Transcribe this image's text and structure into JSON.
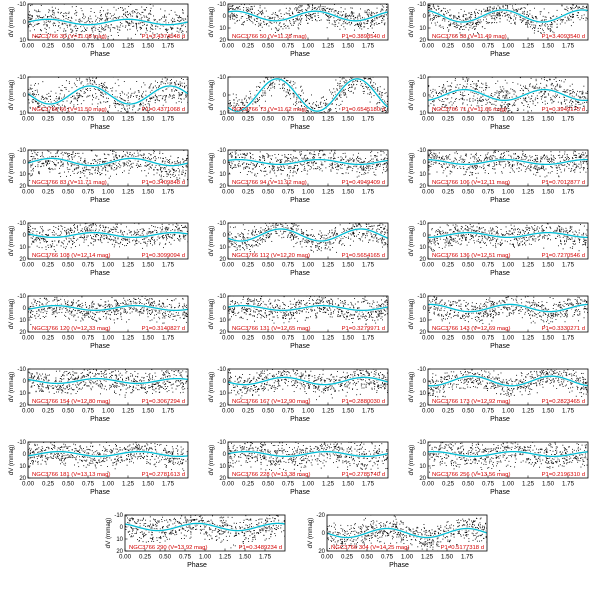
{
  "chart_data": [
    {
      "type": "scatter",
      "star_label": "NGC3766 30 (V=11.08 mag)",
      "period_label": "P1=3.4374548 d",
      "amplitude": 1.5,
      "ylim": [
        10,
        -10
      ],
      "yticks": [
        -10,
        0,
        10
      ],
      "xlim": [
        0,
        2
      ],
      "xticks": [
        "0.00",
        "0.25",
        "0.50",
        "0.75",
        "1.00",
        "1.25",
        "1.50",
        "1.75"
      ],
      "xlabel": "Phase",
      "ylabel": "dV (mmag)",
      "scatter_spread": 4.5
    },
    {
      "type": "scatter",
      "star_label": "NGC3766 50 (V=11.28 mag)",
      "period_label": "P1=0.3898540 d",
      "amplitude": 4,
      "ylim": [
        20,
        -10
      ],
      "yticks": [
        -10,
        0,
        10,
        20
      ],
      "xlim": [
        0,
        2
      ],
      "xticks": [
        "0.00",
        "0.25",
        "0.50",
        "0.75",
        "1.00",
        "1.25",
        "1.50",
        "1.75"
      ],
      "xlabel": "Phase",
      "ylabel": "dV (mmag)",
      "scatter_spread": 5
    },
    {
      "type": "scatter",
      "star_label": "NGC3766 58 (V=11.49 mag)",
      "period_label": "P1=3.4093540 d",
      "amplitude": 5,
      "ylim": [
        20,
        -10
      ],
      "yticks": [
        -10,
        0,
        10,
        20
      ],
      "xlim": [
        0,
        2
      ],
      "xticks": [
        "0.00",
        "0.25",
        "0.50",
        "0.75",
        "1.00",
        "1.25",
        "1.50",
        "1.75"
      ],
      "xlabel": "Phase",
      "ylabel": "dV (mmag)",
      "scatter_spread": 5
    },
    {
      "type": "scatter",
      "star_label": "NGC3766 66 (V=11.50 mag)",
      "period_label": "P1=0.4371068 d",
      "amplitude": 5,
      "ylim": [
        10,
        -10
      ],
      "yticks": [
        -10,
        0,
        10
      ],
      "xlim": [
        0,
        2
      ],
      "xticks": [
        "0.00",
        "0.25",
        "0.50",
        "0.75",
        "1.00",
        "1.25",
        "1.50",
        "1.75"
      ],
      "xlabel": "Phase",
      "ylabel": "dV (mmag)",
      "scatter_spread": 5
    },
    {
      "type": "scatter",
      "star_label": "NGC3766 73 (V=11.62 mag)",
      "period_label": "P1=0.6545180 d",
      "amplitude": 9,
      "ylim": [
        10,
        -10
      ],
      "yticks": [
        -10,
        0,
        10
      ],
      "xlim": [
        0,
        2
      ],
      "xticks": [
        "0.00",
        "0.25",
        "0.50",
        "0.75",
        "1.00",
        "1.25",
        "1.50",
        "1.75"
      ],
      "xlabel": "Phase",
      "ylabel": "dV (mmag)",
      "scatter_spread": 4
    },
    {
      "type": "scatter",
      "star_label": "NGC3766 71 (V=11.66 mag)",
      "period_label": "P1=0.3949175 d",
      "amplitude": 3,
      "ylim": [
        10,
        -10
      ],
      "yticks": [
        -10,
        0,
        10
      ],
      "xlim": [
        0,
        2
      ],
      "xticks": [
        "0.00",
        "0.25",
        "0.50",
        "0.75",
        "1.00",
        "1.25",
        "1.50",
        "1.75"
      ],
      "xlabel": "Phase",
      "ylabel": "dV (mmag)",
      "scatter_spread": 5
    },
    {
      "type": "scatter",
      "star_label": "NGC3766 83 (V=11.71 mag)",
      "period_label": "P1=0.3409848 d",
      "amplitude": 3,
      "ylim": [
        20,
        -10
      ],
      "yticks": [
        -10,
        0,
        10,
        20
      ],
      "xlim": [
        0,
        2
      ],
      "xticks": [
        "0.00",
        "0.25",
        "0.50",
        "0.75",
        "1.00",
        "1.25",
        "1.50",
        "1.75"
      ],
      "xlabel": "Phase",
      "ylabel": "dV (mmag)",
      "scatter_spread": 6
    },
    {
      "type": "scatter",
      "star_label": "NGC3766 94 (V=11.92 mag)",
      "period_label": "P1=0.4949409 d",
      "amplitude": 2,
      "ylim": [
        20,
        -10
      ],
      "yticks": [
        -10,
        0,
        10,
        20
      ],
      "xlim": [
        0,
        2
      ],
      "xticks": [
        "0.00",
        "0.25",
        "0.50",
        "0.75",
        "1.00",
        "1.25",
        "1.50",
        "1.75"
      ],
      "xlabel": "Phase",
      "ylabel": "dV (mmag)",
      "scatter_spread": 5
    },
    {
      "type": "scatter",
      "star_label": "NGC3766 106 (V=12.11 mag)",
      "period_label": "P1=0.7012877 d",
      "amplitude": 2,
      "ylim": [
        20,
        -10
      ],
      "yticks": [
        -10,
        0,
        10,
        20
      ],
      "xlim": [
        0,
        2
      ],
      "xticks": [
        "0.00",
        "0.25",
        "0.50",
        "0.75",
        "1.00",
        "1.25",
        "1.50",
        "1.75"
      ],
      "xlabel": "Phase",
      "ylabel": "dV (mmag)",
      "scatter_spread": 5
    },
    {
      "type": "scatter",
      "star_label": "NGC3766 108 (V=12.14 mag)",
      "period_label": "P1=0.3099094 d",
      "amplitude": 2,
      "ylim": [
        20,
        -10
      ],
      "yticks": [
        -10,
        0,
        10,
        20
      ],
      "xlim": [
        0,
        2
      ],
      "xticks": [
        "0.00",
        "0.25",
        "0.50",
        "0.75",
        "1.00",
        "1.25",
        "1.50",
        "1.75"
      ],
      "xlabel": "Phase",
      "ylabel": "dV (mmag)",
      "scatter_spread": 5
    },
    {
      "type": "scatter",
      "star_label": "NGC3766 112 (V=12.20 mag)",
      "period_label": "P1=0.5654165 d",
      "amplitude": 5,
      "ylim": [
        20,
        -10
      ],
      "yticks": [
        -10,
        0,
        10,
        20
      ],
      "xlim": [
        0,
        2
      ],
      "xticks": [
        "0.00",
        "0.25",
        "0.50",
        "0.75",
        "1.00",
        "1.25",
        "1.50",
        "1.75"
      ],
      "xlabel": "Phase",
      "ylabel": "dV (mmag)",
      "scatter_spread": 5
    },
    {
      "type": "scatter",
      "star_label": "NGC3766 136 (V=12.51 mag)",
      "period_label": "P1=0.7270546 d",
      "amplitude": 2,
      "ylim": [
        20,
        -10
      ],
      "yticks": [
        -10,
        0,
        10,
        20
      ],
      "xlim": [
        0,
        2
      ],
      "xticks": [
        "0.00",
        "0.25",
        "0.50",
        "0.75",
        "1.00",
        "1.25",
        "1.50",
        "1.75"
      ],
      "xlabel": "Phase",
      "ylabel": "dV (mmag)",
      "scatter_spread": 5
    },
    {
      "type": "scatter",
      "star_label": "NGC3766 120 (V=12.33 mag)",
      "period_label": "P1=0.3140827 d",
      "amplitude": 2,
      "ylim": [
        20,
        -10
      ],
      "yticks": [
        -10,
        0,
        10,
        20
      ],
      "xlim": [
        0,
        2
      ],
      "xticks": [
        "0.00",
        "0.25",
        "0.50",
        "0.75",
        "1.00",
        "1.25",
        "1.50",
        "1.75"
      ],
      "xlabel": "Phase",
      "ylabel": "dV (mmag)",
      "scatter_spread": 5
    },
    {
      "type": "scatter",
      "star_label": "NGC3766 131 (V=12.65 mag)",
      "period_label": "P1=0.3279971 d",
      "amplitude": 2,
      "ylim": [
        20,
        -10
      ],
      "yticks": [
        -10,
        0,
        10,
        20
      ],
      "xlim": [
        0,
        2
      ],
      "xticks": [
        "0.00",
        "0.25",
        "0.50",
        "0.75",
        "1.00",
        "1.25",
        "1.50",
        "1.75"
      ],
      "xlabel": "Phase",
      "ylabel": "dV (mmag)",
      "scatter_spread": 5
    },
    {
      "type": "scatter",
      "star_label": "NGC3766 143 (V=12.69 mag)",
      "period_label": "P1=0.3330271 d",
      "amplitude": 3,
      "ylim": [
        20,
        -10
      ],
      "yticks": [
        -10,
        0,
        10,
        20
      ],
      "xlim": [
        0,
        2
      ],
      "xticks": [
        "0.00",
        "0.25",
        "0.50",
        "0.75",
        "1.00",
        "1.25",
        "1.50",
        "1.75"
      ],
      "xlabel": "Phase",
      "ylabel": "dV (mmag)",
      "scatter_spread": 5
    },
    {
      "type": "scatter",
      "star_label": "NGC3766 154 (V=12.80 mag)",
      "period_label": "P1=0.3067294 d",
      "amplitude": 2,
      "ylim": [
        20,
        -10
      ],
      "yticks": [
        -10,
        0,
        10,
        20
      ],
      "xlim": [
        0,
        2
      ],
      "xticks": [
        "0.00",
        "0.25",
        "0.50",
        "0.75",
        "1.00",
        "1.25",
        "1.50",
        "1.75"
      ],
      "xlabel": "Phase",
      "ylabel": "dV (mmag)",
      "scatter_spread": 5
    },
    {
      "type": "scatter",
      "star_label": "NGC3766 167 (V=12.90 mag)",
      "period_label": "P1=0.2880030 d",
      "amplitude": 3,
      "ylim": [
        20,
        -10
      ],
      "yticks": [
        -10,
        0,
        10,
        20
      ],
      "xlim": [
        0,
        2
      ],
      "xticks": [
        "0.00",
        "0.25",
        "0.50",
        "0.75",
        "1.00",
        "1.25",
        "1.50",
        "1.75"
      ],
      "xlabel": "Phase",
      "ylabel": "dV (mmag)",
      "scatter_spread": 5
    },
    {
      "type": "scatter",
      "star_label": "NGC3766 173 (V=12.92 mag)",
      "period_label": "P1=0.2823465 d",
      "amplitude": 4,
      "ylim": [
        20,
        -10
      ],
      "yticks": [
        -10,
        0,
        10,
        20
      ],
      "xlim": [
        0,
        2
      ],
      "xticks": [
        "0.00",
        "0.25",
        "0.50",
        "0.75",
        "1.00",
        "1.25",
        "1.50",
        "1.75"
      ],
      "xlabel": "Phase",
      "ylabel": "dV (mmag)",
      "scatter_spread": 5
    },
    {
      "type": "scatter",
      "star_label": "NGC3766 181 (V=13.13 mag)",
      "period_label": "P1=0.2781613 d",
      "amplitude": 2,
      "ylim": [
        20,
        -10
      ],
      "yticks": [
        -10,
        0,
        10,
        20
      ],
      "xlim": [
        0,
        2
      ],
      "xticks": [
        "0.00",
        "0.25",
        "0.50",
        "0.75",
        "1.00",
        "1.25",
        "1.50",
        "1.75"
      ],
      "xlabel": "Phase",
      "ylabel": "dV (mmag)",
      "scatter_spread": 5
    },
    {
      "type": "scatter",
      "star_label": "NGC3766 228 (V=13.38 mag)",
      "period_label": "P1=0.2785740 d",
      "amplitude": 2,
      "ylim": [
        20,
        -10
      ],
      "yticks": [
        -10,
        0,
        10,
        20
      ],
      "xlim": [
        0,
        2
      ],
      "xticks": [
        "0.00",
        "0.25",
        "0.50",
        "0.75",
        "1.00",
        "1.25",
        "1.50",
        "1.75"
      ],
      "xlabel": "Phase",
      "ylabel": "dV (mmag)",
      "scatter_spread": 6
    },
    {
      "type": "scatter",
      "star_label": "NGC3766 256 (V=13.56 mag)",
      "period_label": "P1=0.2196310 d",
      "amplitude": 2,
      "ylim": [
        20,
        -10
      ],
      "yticks": [
        -10,
        0,
        10,
        20
      ],
      "xlim": [
        0,
        2
      ],
      "xticks": [
        "0.00",
        "0.25",
        "0.50",
        "0.75",
        "1.00",
        "1.25",
        "1.50",
        "1.75"
      ],
      "xlabel": "Phase",
      "ylabel": "dV (mmag)",
      "scatter_spread": 6
    },
    {
      "type": "scatter",
      "star_label": "NGC3766 290 (V=13.92 mag)",
      "period_label": "P1=0.3489234 d",
      "amplitude": 3,
      "ylim": [
        20,
        -10
      ],
      "yticks": [
        -10,
        0,
        10,
        20
      ],
      "xlim": [
        0,
        2
      ],
      "xticks": [
        "0.00",
        "0.25",
        "0.50",
        "0.75",
        "1.00",
        "1.25",
        "1.50",
        "1.75"
      ],
      "xlabel": "Phase",
      "ylabel": "dV (mmag)",
      "scatter_spread": 6
    },
    {
      "type": "scatter",
      "star_label": "NGC3766 304 (V=14.25 mag)",
      "period_label": "P1=0.5177318 d",
      "amplitude": 5,
      "ylim": [
        20,
        -20
      ],
      "yticks": [
        -20,
        0,
        20
      ],
      "xlim": [
        0,
        2
      ],
      "xticks": [
        "0.00",
        "0.25",
        "0.50",
        "0.75",
        "1.00",
        "1.25",
        "1.50",
        "1.75"
      ],
      "xlabel": "Phase",
      "ylabel": "dV (mmag)",
      "scatter_spread": 7
    }
  ],
  "colors": {
    "points": "#000000",
    "fit": "#00bcd4",
    "label": "#d40000",
    "axis": "#000000"
  }
}
